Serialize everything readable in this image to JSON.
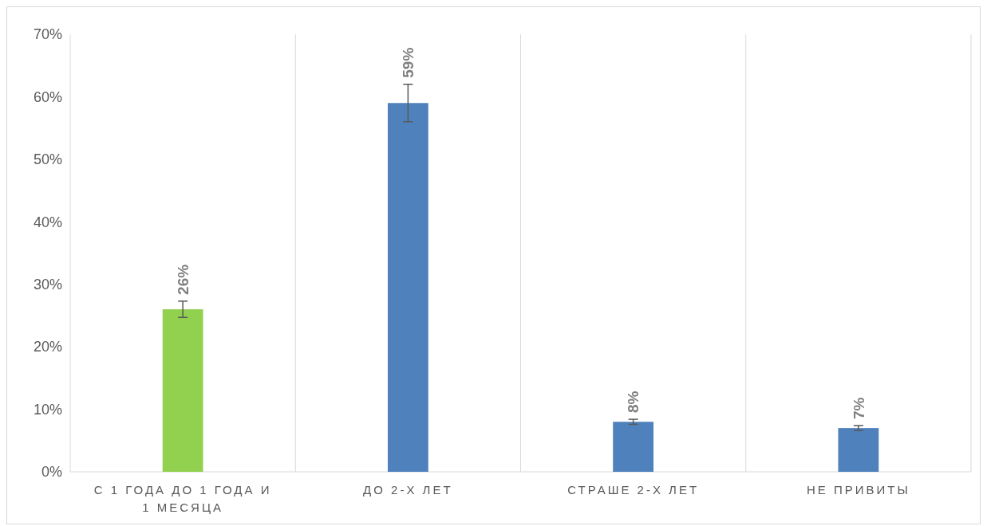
{
  "chart_data": {
    "type": "bar",
    "categories": [
      "С 1 ГОДА ДО 1 ГОДА И 1 МЕСЯЦА",
      "ДО 2-Х ЛЕТ",
      "СТРАШЕ 2-Х ЛЕТ",
      "НЕ ПРИВИТЫ"
    ],
    "values": [
      26,
      59,
      8,
      7
    ],
    "colors": [
      "#92d050",
      "#4f81bd",
      "#4f81bd",
      "#4f81bd"
    ],
    "errors": [
      [
        24.7,
        27.3
      ],
      [
        56,
        62
      ],
      [
        7.6,
        8.4
      ],
      [
        6.6,
        7.4
      ]
    ],
    "value_labels": [
      "26%",
      "59%",
      "8%",
      "7%"
    ],
    "ylim": [
      0,
      70
    ],
    "yticks": [
      {
        "value": 0,
        "label": "0%"
      },
      {
        "value": 10,
        "label": "10%"
      },
      {
        "value": 20,
        "label": "20%"
      },
      {
        "value": 30,
        "label": "30%"
      },
      {
        "value": 40,
        "label": "40%"
      },
      {
        "value": 50,
        "label": "50%"
      },
      {
        "value": 60,
        "label": "60%"
      },
      {
        "value": 70,
        "label": "70%"
      }
    ],
    "grid": "x"
  }
}
